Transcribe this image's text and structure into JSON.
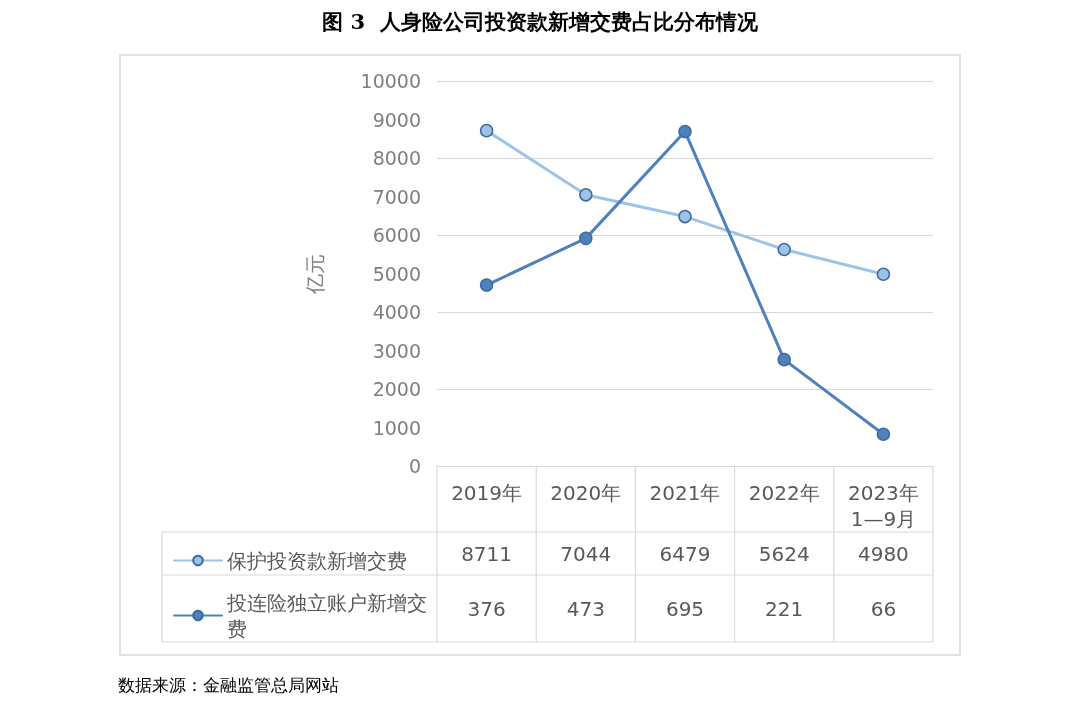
{
  "chart_data": {
    "type": "line",
    "title": "图 3  人身险公司投资款新增交费占比分布情况",
    "ylabel": "亿元",
    "categories": [
      "2019年",
      "2020年",
      "2021年",
      "2022年",
      "2023年1—9月"
    ],
    "series": [
      {
        "name": "保护投资款新增交费",
        "color": "#9dc3e6",
        "values": [
          8711,
          7044,
          6479,
          5624,
          4980
        ]
      },
      {
        "name": "投连险独立账户新增交费",
        "color": "#4f81bd",
        "axis": "y2",
        "values": [
          376,
          473,
          695,
          221,
          66
        ]
      }
    ],
    "ylim": [
      0,
      10000
    ],
    "yticks": [
      0,
      1000,
      2000,
      3000,
      4000,
      5000,
      6000,
      7000,
      8000,
      9000,
      10000
    ],
    "y2lim": [
      0,
      800
    ],
    "grid": "y",
    "marker": "circle",
    "line_style": "solid",
    "data_labels": true,
    "legend": "bottom",
    "annotations": [
      "数据来源：金融监管总局网站"
    ]
  }
}
